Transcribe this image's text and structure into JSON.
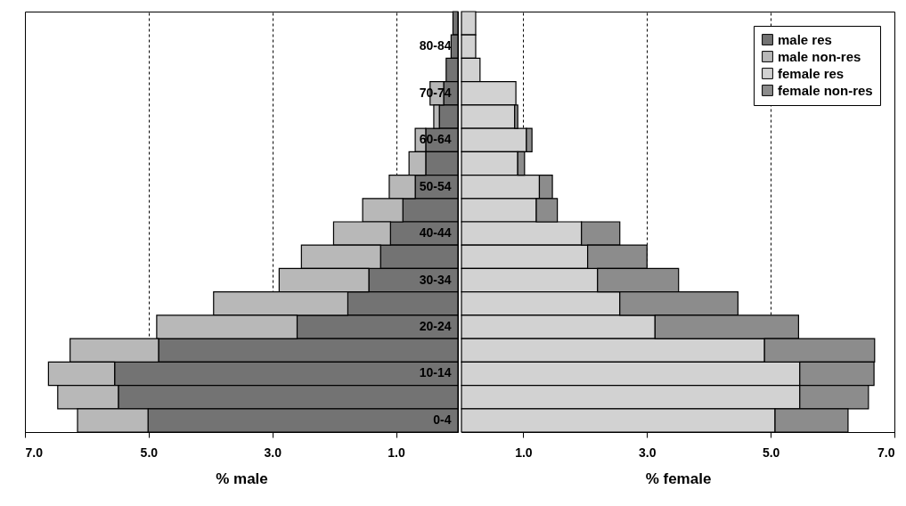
{
  "chart_data": [
    {
      "type": "bar",
      "orientation": "horizontal",
      "stacked": true,
      "xlabel": "% male",
      "categories": [
        null,
        "80-84",
        null,
        "70-74",
        null,
        "60-64",
        null,
        "50-54",
        null,
        "40-44",
        null,
        "30-34",
        null,
        "20-24",
        null,
        "10-14",
        null,
        "0-4"
      ],
      "series": [
        {
          "name": "male res",
          "color": "#737373",
          "values": [
            0.08,
            0.11,
            0.19,
            0.23,
            0.3,
            0.52,
            0.52,
            0.69,
            0.89,
            1.09,
            1.25,
            1.44,
            1.78,
            2.6,
            4.84,
            5.55,
            5.49,
            5.01
          ]
        },
        {
          "name": "male non-res",
          "color": "#b8b8b8",
          "values": [
            0,
            0,
            0,
            0.22,
            0.09,
            0.17,
            0.27,
            0.42,
            0.65,
            0.92,
            1.28,
            1.45,
            2.17,
            2.27,
            1.43,
            1.07,
            0.98,
            1.14
          ]
        }
      ],
      "xlim": [
        7,
        0
      ],
      "xticks": [
        {
          "value": 7,
          "label": "7.0"
        },
        {
          "value": 5,
          "label": "5.0"
        },
        {
          "value": 3,
          "label": "3.0"
        },
        {
          "value": 1,
          "label": "1.0"
        }
      ],
      "grid": "x",
      "legend": "top right"
    },
    {
      "type": "bar",
      "orientation": "horizontal",
      "stacked": true,
      "xlabel": "% female",
      "series": [
        {
          "name": "female res",
          "color": "#d2d2d2",
          "values": [
            0.23,
            0.23,
            0.3,
            0.88,
            0.86,
            1.05,
            0.91,
            1.26,
            1.21,
            1.94,
            2.04,
            2.2,
            2.56,
            3.13,
            4.9,
            5.47,
            5.47,
            5.07
          ]
        },
        {
          "name": "female non-res",
          "color": "#8c8c8c",
          "values": [
            0,
            0,
            0,
            0,
            0.05,
            0.09,
            0.11,
            0.21,
            0.34,
            0.62,
            0.96,
            1.31,
            1.91,
            2.32,
            1.78,
            1.2,
            1.11,
            1.18
          ]
        }
      ],
      "xlim": [
        0,
        7
      ],
      "xticks": [
        {
          "value": 1,
          "label": "1.0"
        },
        {
          "value": 3,
          "label": "3.0"
        },
        {
          "value": 5,
          "label": "5.0"
        },
        {
          "value": 7,
          "label": "7.0"
        }
      ],
      "grid": "x",
      "legend": "top right",
      "tick_labels": "x"
    }
  ]
}
